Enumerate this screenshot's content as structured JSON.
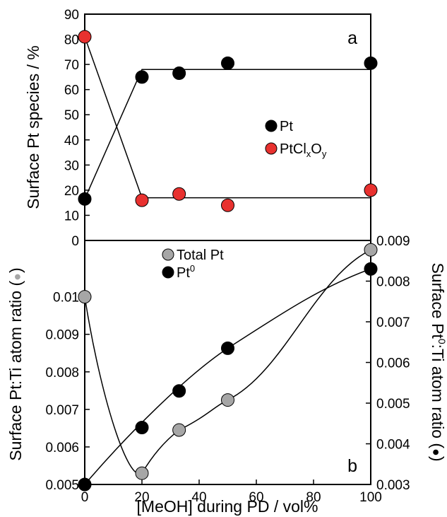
{
  "chart_data": [
    {
      "type": "scatter",
      "panel_label": "a",
      "ylabel": "Surface Pt species / %",
      "xlim": [
        0,
        100
      ],
      "ylim": [
        0,
        90
      ],
      "yticks": [
        "0",
        "10",
        "20",
        "30",
        "40",
        "50",
        "60",
        "70",
        "80",
        "90"
      ],
      "series": [
        {
          "name": "Pt",
          "color": "#000000",
          "points": [
            [
              0,
              16.5
            ],
            [
              20,
              65
            ],
            [
              33,
              66.5
            ],
            [
              50,
              70.5
            ],
            [
              100,
              70.5
            ]
          ],
          "fit": [
            [
              0,
              16.5
            ],
            [
              20,
              68
            ],
            [
              100,
              68
            ]
          ]
        },
        {
          "name": "PtClxOy",
          "name_main": "PtCl",
          "name_sub1": "x",
          "name_mid": "O",
          "name_sub2": "y",
          "color": "#e8312f",
          "points": [
            [
              0,
              81
            ],
            [
              20,
              16
            ],
            [
              33,
              18.5
            ],
            [
              50,
              14
            ],
            [
              100,
              20
            ]
          ],
          "fit": [
            [
              0,
              81
            ],
            [
              20,
              17
            ],
            [
              100,
              17
            ]
          ]
        }
      ],
      "legend": "center-right"
    },
    {
      "type": "scatter",
      "panel_label": "b",
      "xlabel": "[MeOH] during PD / vol%",
      "xticks": [
        "0",
        "20",
        "40",
        "60",
        "80",
        "100"
      ],
      "xlim": [
        0,
        100
      ],
      "ylabel_left": "Surface Pt:Ti atom ratio (",
      "ylabel_left_marker": "●",
      "ylabel_left_close": ")",
      "ylim_left": [
        0.005,
        0.0115
      ],
      "yticks_left": [
        "0.005",
        "0.006",
        "0.007",
        "0.008",
        "0.009",
        "0.01"
      ],
      "ylabel_right_a": "Surface Pt",
      "ylabel_right_sup": "0",
      "ylabel_right_b": ":Ti atom ratio (",
      "ylabel_right_marker": "●",
      "ylabel_right_close": ")",
      "ylim_right": [
        0.003,
        0.009
      ],
      "yticks_right": [
        "0.003",
        "0.004",
        "0.005",
        "0.006",
        "0.007",
        "0.008",
        "0.009"
      ],
      "series": [
        {
          "name": "Total Pt",
          "axis": "left",
          "color": "#a6a6a6",
          "points": [
            [
              0,
              0.01
            ],
            [
              20,
              0.0053
            ],
            [
              33,
              0.00645
            ],
            [
              50,
              0.00725
            ],
            [
              100,
              0.01125
            ]
          ]
        },
        {
          "name": "Pt0",
          "name_main": "Pt",
          "name_sup": "0",
          "axis": "right",
          "color": "#000000",
          "points": [
            [
              0,
              0.003
            ],
            [
              20,
              0.0044
            ],
            [
              33,
              0.0053
            ],
            [
              50,
              0.00635
            ],
            [
              100,
              0.0083
            ]
          ]
        }
      ],
      "legend": "top-center"
    }
  ]
}
